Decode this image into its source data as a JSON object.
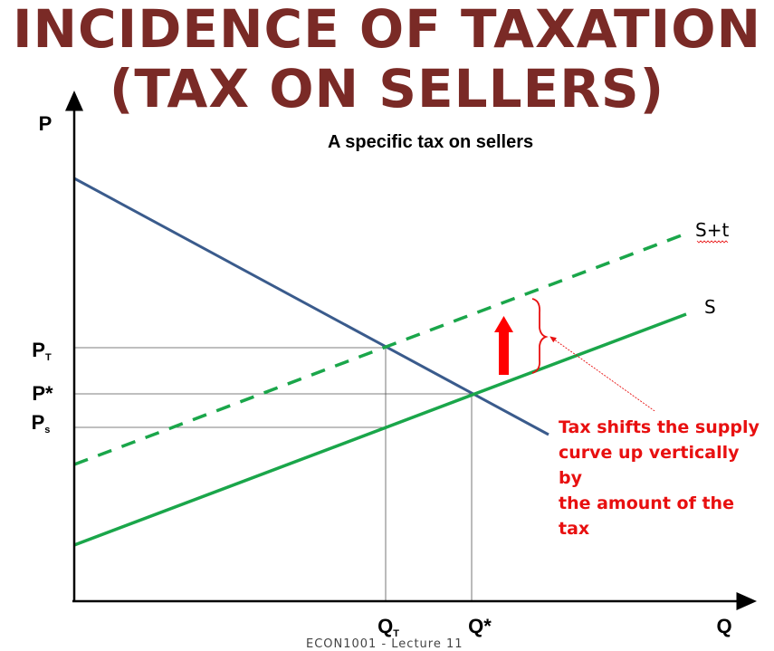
{
  "title": {
    "line1": "INCIDENCE OF TAXATION",
    "line2": "(TAX ON SELLERS)"
  },
  "caption": "A specific tax on sellers",
  "axes": {
    "y_label": "P",
    "x_label": "Q"
  },
  "price_labels": {
    "pt": {
      "main": "P",
      "sub": "T"
    },
    "pstar": {
      "main": "P*"
    },
    "ps": {
      "main": "P",
      "sub": "s"
    }
  },
  "quantity_labels": {
    "qt": {
      "main": "Q",
      "sub": "T"
    },
    "qstar": {
      "main": "Q*"
    }
  },
  "curves": {
    "demand": {
      "color": "#3a5b8c"
    },
    "supply": {
      "label": "S",
      "color": "#1aa64a"
    },
    "supply_tax": {
      "label": "S+t",
      "color": "#1aa64a"
    }
  },
  "annotation": {
    "line1": "Tax shifts the supply",
    "line2": "curve up vertically by",
    "line3": "the amount of the tax"
  },
  "footer": "ECON1001 - Lecture 11",
  "colors": {
    "title": "#7a2a26",
    "annotation": "#e81010",
    "arrow": "#ff0000"
  }
}
